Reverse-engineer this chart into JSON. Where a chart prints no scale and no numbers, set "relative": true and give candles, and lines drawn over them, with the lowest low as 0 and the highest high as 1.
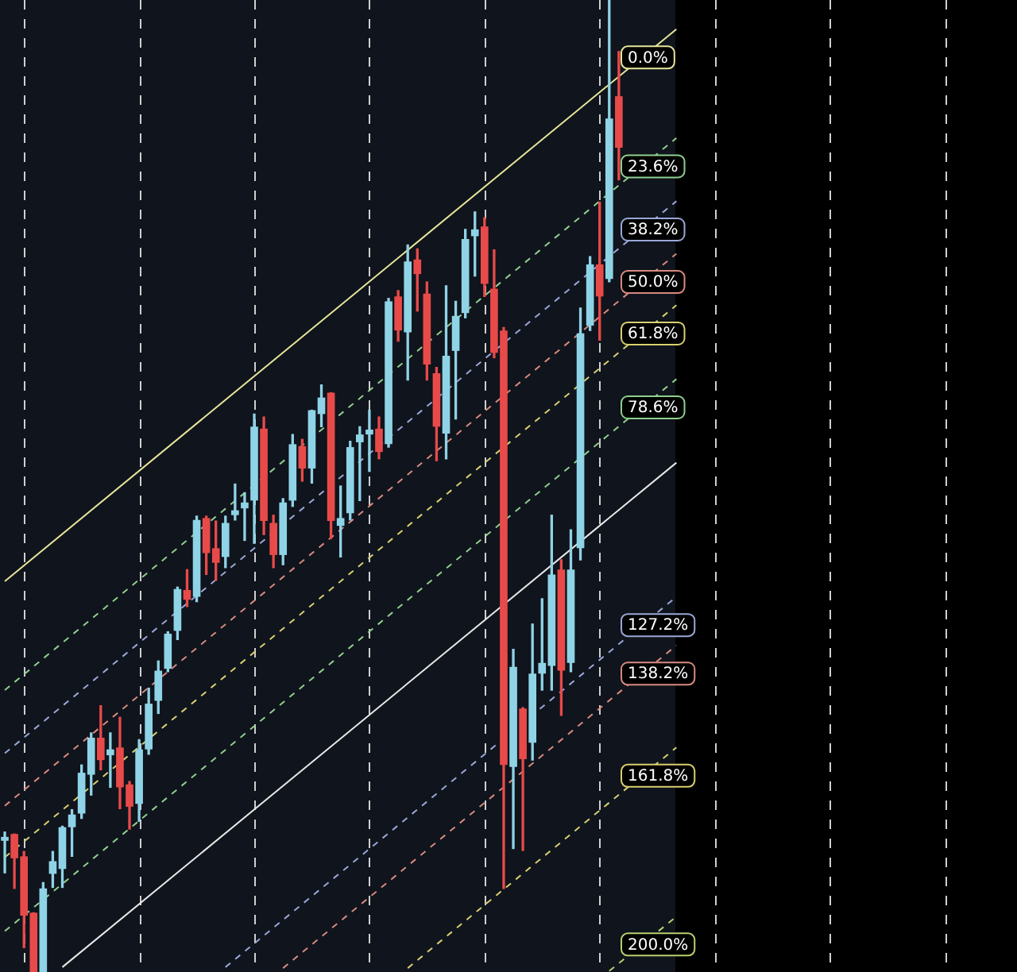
{
  "chart_data": {
    "type": "candlestick",
    "relative": true,
    "grid": "x",
    "categories": [
      null,
      null,
      null,
      null,
      null,
      null,
      null,
      null,
      null,
      null,
      null,
      null,
      null,
      null,
      null,
      null,
      null,
      null,
      null,
      null,
      null,
      null,
      null,
      null,
      null,
      null,
      null,
      null,
      null,
      null,
      null,
      null,
      null,
      null,
      null,
      null,
      null,
      null,
      null,
      null,
      null,
      null,
      null,
      null,
      null,
      null,
      null,
      null,
      null,
      null,
      null,
      null,
      null,
      null,
      null,
      null,
      null,
      null,
      null,
      null,
      null,
      null,
      null,
      null,
      null,
      null,
      null,
      null,
      null,
      null,
      null,
      null,
      null,
      null,
      null,
      null,
      null,
      null,
      null,
      null,
      null,
      null,
      null,
      null,
      null,
      null,
      null,
      null,
      null,
      null,
      null,
      null,
      null,
      null,
      null,
      null,
      null,
      null,
      null,
      null,
      null,
      null,
      null,
      null,
      null,
      null
    ],
    "ohlc": [
      [
        0.135,
        0.144,
        0.102,
        0.139
      ],
      [
        0.142,
        0.142,
        0.086,
        0.117
      ],
      [
        0.119,
        0.124,
        0.025,
        0.058
      ],
      [
        0.061,
        0.061,
        0,
        0
      ],
      [
        0,
        0.092,
        0,
        0.086
      ],
      [
        0.101,
        0.124,
        0.087,
        0.114
      ],
      [
        0.106,
        0.15,
        0.087,
        0.149
      ],
      [
        0.149,
        0.167,
        0.119,
        0.162
      ],
      [
        0.163,
        0.213,
        0.158,
        0.205
      ],
      [
        0.203,
        0.246,
        0.182,
        0.241
      ],
      [
        0.241,
        0.274,
        0.208,
        0.218
      ],
      [
        0.223,
        0.246,
        0.19,
        0.229
      ],
      [
        0.231,
        0.262,
        0.168,
        0.19
      ],
      [
        0.193,
        0.196,
        0.147,
        0.17
      ],
      [
        0.173,
        0.239,
        0.155,
        0.229
      ],
      [
        0.229,
        0.292,
        0.224,
        0.276
      ],
      [
        0.279,
        0.32,
        0.266,
        0.31
      ],
      [
        0.312,
        0.35,
        0.309,
        0.348
      ],
      [
        0.351,
        0.396,
        0.342,
        0.394
      ],
      [
        0.393,
        0.414,
        0.376,
        0.383
      ],
      [
        0.386,
        0.469,
        0.381,
        0.465
      ],
      [
        0.467,
        0.469,
        0.409,
        0.431
      ],
      [
        0.436,
        0.464,
        0.403,
        0.421
      ],
      [
        0.427,
        0.469,
        0.416,
        0.462
      ],
      [
        0.47,
        0.502,
        0.465,
        0.475
      ],
      [
        0.477,
        0.493,
        0.444,
        0.483
      ],
      [
        0.485,
        0.574,
        0.441,
        0.561
      ],
      [
        0.559,
        0.571,
        0.45,
        0.464
      ],
      [
        0.462,
        0.47,
        0.416,
        0.429
      ],
      [
        0.429,
        0.487,
        0.419,
        0.483
      ],
      [
        0.485,
        0.553,
        0.479,
        0.543
      ],
      [
        0.541,
        0.548,
        0.505,
        0.518
      ],
      [
        0.518,
        0.578,
        0.503,
        0.578
      ],
      [
        0.574,
        0.604,
        0.561,
        0.591
      ],
      [
        0.596,
        0.596,
        0.446,
        0.464
      ],
      [
        0.459,
        0.5,
        0.427,
        0.467
      ],
      [
        0.472,
        0.546,
        0.465,
        0.54
      ],
      [
        0.545,
        0.561,
        0.485,
        0.553
      ],
      [
        0.553,
        0.578,
        0.515,
        0.558
      ],
      [
        0.559,
        0.571,
        0.528,
        0.535
      ],
      [
        0.543,
        0.693,
        0.54,
        0.69
      ],
      [
        0.695,
        0.701,
        0.649,
        0.66
      ],
      [
        0.658,
        0.748,
        0.609,
        0.731
      ],
      [
        0.733,
        0.744,
        0.68,
        0.718
      ],
      [
        0.698,
        0.71,
        0.609,
        0.625
      ],
      [
        0.616,
        0.622,
        0.526,
        0.561
      ],
      [
        0.554,
        0.706,
        0.528,
        0.634
      ],
      [
        0.639,
        0.69,
        0.569,
        0.675
      ],
      [
        0.678,
        0.764,
        0.673,
        0.754
      ],
      [
        0.757,
        0.782,
        0.716,
        0.764
      ],
      [
        0.767,
        0.776,
        0.695,
        0.708
      ],
      [
        0.703,
        0.743,
        0.632,
        0.637
      ],
      [
        0.66,
        0.663,
        0.086,
        0.213
      ],
      [
        0.211,
        0.332,
        0.127,
        0.314
      ],
      [
        0.271,
        0.272,
        0.125,
        0.219
      ],
      [
        0.236,
        0.358,
        0.218,
        0.307
      ],
      [
        0.307,
        0.384,
        0.29,
        0.318
      ],
      [
        0.315,
        0.47,
        0.29,
        0.409
      ],
      [
        0.414,
        0.424,
        0.264,
        0.31
      ],
      [
        0.318,
        0.455,
        0.309,
        0.414
      ],
      [
        0.436,
        0.683,
        0.424,
        0.657
      ],
      [
        0.665,
        0.736,
        0.66,
        0.728
      ],
      [
        0.728,
        0.792,
        0.65,
        0.695
      ],
      [
        0.713,
        1,
        0.71,
        0.878
      ],
      [
        0.901,
        0.947,
        0.815,
        0.848
      ],
      null,
      null,
      null,
      null,
      null,
      null,
      null,
      null,
      null,
      null,
      null,
      null,
      null,
      null,
      null,
      null,
      null,
      null,
      null,
      null,
      null,
      null,
      null,
      null,
      null,
      null,
      null,
      null,
      null,
      null,
      null,
      null,
      null,
      null,
      null,
      null,
      null,
      null,
      null,
      null,
      null
    ],
    "series": [
      {
        "name": "0.0%",
        "type": "line",
        "line_style": "solid",
        "color": "#e6e69a",
        "values": [
          0.402,
          null,
          null,
          null,
          null,
          null,
          null,
          null,
          null,
          null,
          null,
          null,
          null,
          null,
          null,
          null,
          null,
          null,
          null,
          null,
          null,
          null,
          null,
          null,
          null,
          null,
          null,
          null,
          null,
          null,
          null,
          null,
          null,
          null,
          null,
          null,
          null,
          null,
          null,
          null,
          null,
          null,
          null,
          null,
          null,
          null,
          null,
          null,
          null,
          null,
          null,
          null,
          null,
          null,
          null,
          null,
          null,
          null,
          null,
          null,
          null,
          null,
          null,
          null,
          null,
          null,
          null,
          null,
          null,
          null,
          0.97,
          null,
          null,
          null,
          null,
          null,
          null,
          null,
          null,
          null,
          null,
          null,
          null,
          null,
          null,
          null,
          null,
          null,
          null,
          null,
          null,
          null,
          null,
          null,
          null,
          null,
          null,
          null,
          null,
          null,
          null,
          null,
          null,
          null,
          null,
          null
        ]
      },
      {
        "name": "23.6%",
        "type": "line",
        "line_style": "dashed",
        "color": "#8fd08f",
        "values": [
          0.29,
          null,
          null,
          null,
          null,
          null,
          null,
          null,
          null,
          null,
          null,
          null,
          null,
          null,
          null,
          null,
          null,
          null,
          null,
          null,
          null,
          null,
          null,
          null,
          null,
          null,
          null,
          null,
          null,
          null,
          null,
          null,
          null,
          null,
          null,
          null,
          null,
          null,
          null,
          null,
          null,
          null,
          null,
          null,
          null,
          null,
          null,
          null,
          null,
          null,
          null,
          null,
          null,
          null,
          null,
          null,
          null,
          null,
          null,
          null,
          null,
          null,
          null,
          null,
          null,
          null,
          null,
          null,
          null,
          null,
          0.858,
          null,
          null,
          null,
          null,
          null,
          null,
          null,
          null,
          null,
          null,
          null,
          null,
          null,
          null,
          null,
          null,
          null,
          null,
          null,
          null,
          null,
          null,
          null,
          null,
          null,
          null,
          null,
          null,
          null,
          null,
          null,
          null,
          null,
          null,
          null
        ]
      },
      {
        "name": "38.2%",
        "type": "line",
        "line_style": "dashed",
        "color": "#9aa8d8",
        "values": [
          0.225,
          null,
          null,
          null,
          null,
          null,
          null,
          null,
          null,
          null,
          null,
          null,
          null,
          null,
          null,
          null,
          null,
          null,
          null,
          null,
          null,
          null,
          null,
          null,
          null,
          null,
          null,
          null,
          null,
          null,
          null,
          null,
          null,
          null,
          null,
          null,
          null,
          null,
          null,
          null,
          null,
          null,
          null,
          null,
          null,
          null,
          null,
          null,
          null,
          null,
          null,
          null,
          null,
          null,
          null,
          null,
          null,
          null,
          null,
          null,
          null,
          null,
          null,
          null,
          null,
          null,
          null,
          null,
          null,
          null,
          0.793,
          null,
          null,
          null,
          null,
          null,
          null,
          null,
          null,
          null,
          null,
          null,
          null,
          null,
          null,
          null,
          null,
          null,
          null,
          null,
          null,
          null,
          null,
          null,
          null,
          null,
          null,
          null,
          null,
          null,
          null,
          null,
          null,
          null,
          null,
          null
        ]
      },
      {
        "name": "50.0%",
        "type": "line",
        "line_style": "dashed",
        "color": "#d88a80",
        "values": [
          0.171,
          null,
          null,
          null,
          null,
          null,
          null,
          null,
          null,
          null,
          null,
          null,
          null,
          null,
          null,
          null,
          null,
          null,
          null,
          null,
          null,
          null,
          null,
          null,
          null,
          null,
          null,
          null,
          null,
          null,
          null,
          null,
          null,
          null,
          null,
          null,
          null,
          null,
          null,
          null,
          null,
          null,
          null,
          null,
          null,
          null,
          null,
          null,
          null,
          null,
          null,
          null,
          null,
          null,
          null,
          null,
          null,
          null,
          null,
          null,
          null,
          null,
          null,
          null,
          null,
          null,
          null,
          null,
          null,
          null,
          0.739,
          null,
          null,
          null,
          null,
          null,
          null,
          null,
          null,
          null,
          null,
          null,
          null,
          null,
          null,
          null,
          null,
          null,
          null,
          null,
          null,
          null,
          null,
          null,
          null,
          null,
          null,
          null,
          null,
          null,
          null,
          null,
          null,
          null,
          null,
          null
        ]
      },
      {
        "name": "61.8%",
        "type": "line",
        "line_style": "dashed",
        "color": "#d8d070",
        "values": [
          0.118,
          null,
          null,
          null,
          null,
          null,
          null,
          null,
          null,
          null,
          null,
          null,
          null,
          null,
          null,
          null,
          null,
          null,
          null,
          null,
          null,
          null,
          null,
          null,
          null,
          null,
          null,
          null,
          null,
          null,
          null,
          null,
          null,
          null,
          null,
          null,
          null,
          null,
          null,
          null,
          null,
          null,
          null,
          null,
          null,
          null,
          null,
          null,
          null,
          null,
          null,
          null,
          null,
          null,
          null,
          null,
          null,
          null,
          null,
          null,
          null,
          null,
          null,
          null,
          null,
          null,
          null,
          null,
          null,
          null,
          0.686,
          null,
          null,
          null,
          null,
          null,
          null,
          null,
          null,
          null,
          null,
          null,
          null,
          null,
          null,
          null,
          null,
          null,
          null,
          null,
          null,
          null,
          null,
          null,
          null,
          null,
          null,
          null,
          null,
          null,
          null,
          null,
          null,
          null,
          null,
          null
        ]
      },
      {
        "name": "78.6%",
        "type": "line",
        "line_style": "dashed",
        "color": "#8fd08f",
        "values": [
          0.042,
          null,
          null,
          null,
          null,
          null,
          null,
          null,
          null,
          null,
          null,
          null,
          null,
          null,
          null,
          null,
          null,
          null,
          null,
          null,
          null,
          null,
          null,
          null,
          null,
          null,
          null,
          null,
          null,
          null,
          null,
          null,
          null,
          null,
          null,
          null,
          null,
          null,
          null,
          null,
          null,
          null,
          null,
          null,
          null,
          null,
          null,
          null,
          null,
          null,
          null,
          null,
          null,
          null,
          null,
          null,
          null,
          null,
          null,
          null,
          null,
          null,
          null,
          null,
          null,
          null,
          null,
          null,
          null,
          null,
          0.61,
          null,
          null,
          null,
          null,
          null,
          null,
          null,
          null,
          null,
          null,
          null,
          null,
          null,
          null,
          null,
          null,
          null,
          null,
          null,
          null,
          null,
          null,
          null,
          null,
          null,
          null,
          null,
          null,
          null,
          null,
          null,
          null,
          null,
          null,
          null
        ]
      },
      {
        "type": "line",
        "line_style": "solid",
        "color": "#e8e8e8",
        "values": [
          null,
          null,
          null,
          null,
          null,
          null,
          0.005,
          null,
          null,
          null,
          null,
          null,
          null,
          null,
          null,
          null,
          null,
          null,
          null,
          null,
          null,
          null,
          null,
          null,
          null,
          null,
          null,
          null,
          null,
          null,
          null,
          null,
          null,
          null,
          null,
          null,
          null,
          null,
          null,
          null,
          null,
          null,
          null,
          null,
          null,
          null,
          null,
          null,
          null,
          null,
          null,
          null,
          null,
          null,
          null,
          null,
          null,
          null,
          null,
          null,
          null,
          null,
          null,
          null,
          null,
          null,
          null,
          null,
          null,
          null,
          0.524,
          null,
          null,
          null,
          null,
          null,
          null,
          null,
          null,
          null,
          null,
          null,
          null,
          null,
          null,
          null,
          null,
          null,
          null,
          null,
          null,
          null,
          null,
          null,
          null,
          null,
          null,
          null,
          null,
          null,
          null,
          null,
          null,
          null,
          null,
          null
        ]
      },
      {
        "name": "127.2%",
        "type": "line",
        "line_style": "dashed",
        "color": "#9aa8d8",
        "values": [
          null,
          null,
          null,
          null,
          null,
          null,
          null,
          null,
          null,
          null,
          null,
          null,
          null,
          null,
          null,
          null,
          null,
          null,
          null,
          null,
          null,
          null,
          null,
          0.005,
          null,
          null,
          null,
          null,
          null,
          null,
          null,
          null,
          null,
          null,
          null,
          null,
          null,
          null,
          null,
          null,
          null,
          null,
          null,
          null,
          null,
          null,
          null,
          null,
          null,
          null,
          null,
          null,
          null,
          null,
          null,
          null,
          null,
          null,
          null,
          null,
          null,
          null,
          null,
          null,
          null,
          null,
          null,
          null,
          null,
          null,
          0.386,
          null,
          null,
          null,
          null,
          null,
          null,
          null,
          null,
          null,
          null,
          null,
          null,
          null,
          null,
          null,
          null,
          null,
          null,
          null,
          null,
          null,
          null,
          null,
          null,
          null,
          null,
          null,
          null,
          null,
          null,
          null,
          null,
          null,
          null,
          null
        ]
      },
      {
        "name": "138.2%",
        "type": "line",
        "line_style": "dashed",
        "color": "#d88a80",
        "values": [
          null,
          null,
          null,
          null,
          null,
          null,
          null,
          null,
          null,
          null,
          null,
          null,
          null,
          null,
          null,
          null,
          null,
          null,
          null,
          null,
          null,
          null,
          null,
          null,
          null,
          null,
          null,
          null,
          null,
          0.004,
          null,
          null,
          null,
          null,
          null,
          null,
          null,
          null,
          null,
          null,
          null,
          null,
          null,
          null,
          null,
          null,
          null,
          null,
          null,
          null,
          null,
          null,
          null,
          null,
          null,
          null,
          null,
          null,
          null,
          null,
          null,
          null,
          null,
          null,
          null,
          null,
          null,
          null,
          null,
          null,
          0.336,
          null,
          null,
          null,
          null,
          null,
          null,
          null,
          null,
          null,
          null,
          null,
          null,
          null,
          null,
          null,
          null,
          null,
          null,
          null,
          null,
          null,
          null,
          null,
          null,
          null,
          null,
          null,
          null,
          null,
          null,
          null,
          null,
          null,
          null,
          null
        ]
      },
      {
        "name": "161.8%",
        "type": "line",
        "line_style": "dashed",
        "color": "#d8d070",
        "values": [
          null,
          null,
          null,
          null,
          null,
          null,
          null,
          null,
          null,
          null,
          null,
          null,
          null,
          null,
          null,
          null,
          null,
          null,
          null,
          null,
          null,
          null,
          null,
          null,
          null,
          null,
          null,
          null,
          null,
          null,
          null,
          null,
          null,
          null,
          null,
          null,
          null,
          null,
          null,
          null,
          null,
          null,
          0.004,
          null,
          null,
          null,
          null,
          null,
          null,
          null,
          null,
          null,
          null,
          null,
          null,
          null,
          null,
          null,
          null,
          null,
          null,
          null,
          null,
          null,
          null,
          null,
          null,
          null,
          null,
          null,
          0.231,
          null,
          null,
          null,
          null,
          null,
          null,
          null,
          null,
          null,
          null,
          null,
          null,
          null,
          null,
          null,
          null,
          null,
          null,
          null,
          null,
          null,
          null,
          null,
          null,
          null,
          null,
          null,
          null,
          null,
          null,
          null,
          null,
          null,
          null,
          null
        ]
      },
      {
        "name": "200.0%",
        "type": "line",
        "line_style": "dashed",
        "color": "#b8d070",
        "values": [
          null,
          null,
          null,
          null,
          null,
          null,
          null,
          null,
          null,
          null,
          null,
          null,
          null,
          null,
          null,
          null,
          null,
          null,
          null,
          null,
          null,
          null,
          null,
          null,
          null,
          null,
          null,
          null,
          null,
          null,
          null,
          null,
          null,
          null,
          null,
          null,
          null,
          null,
          null,
          null,
          null,
          null,
          null,
          null,
          null,
          null,
          null,
          null,
          null,
          null,
          null,
          null,
          null,
          null,
          null,
          null,
          null,
          null,
          null,
          null,
          null,
          null,
          null,
          0.001,
          null,
          null,
          null,
          null,
          null,
          null,
          0.057,
          null,
          null,
          null,
          null,
          null,
          null,
          null,
          null,
          null,
          null,
          null,
          null,
          null,
          null,
          null,
          null,
          null,
          null,
          null,
          null,
          null,
          null,
          null,
          null,
          null,
          null,
          null,
          null,
          null,
          null,
          null,
          null,
          null,
          null,
          null
        ]
      }
    ]
  }
}
